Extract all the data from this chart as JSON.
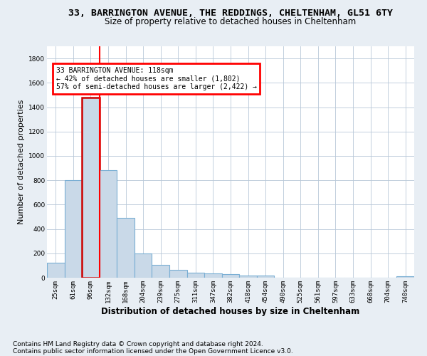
{
  "title_line1": "33, BARRINGTON AVENUE, THE REDDINGS, CHELTENHAM, GL51 6TY",
  "title_line2": "Size of property relative to detached houses in Cheltenham",
  "xlabel": "Distribution of detached houses by size in Cheltenham",
  "ylabel": "Number of detached properties",
  "footer_line1": "Contains HM Land Registry data © Crown copyright and database right 2024.",
  "footer_line2": "Contains public sector information licensed under the Open Government Licence v3.0.",
  "annotation_line1": "33 BARRINGTON AVENUE: 118sqm",
  "annotation_line2": "← 42% of detached houses are smaller (1,802)",
  "annotation_line3": "57% of semi-detached houses are larger (2,422) →",
  "bar_color": "#c9d9e8",
  "bar_edge_color": "#7aafd4",
  "highlight_bar_edge_color": "#cc0000",
  "categories": [
    "25sqm",
    "61sqm",
    "96sqm",
    "132sqm",
    "168sqm",
    "204sqm",
    "239sqm",
    "275sqm",
    "311sqm",
    "347sqm",
    "382sqm",
    "418sqm",
    "454sqm",
    "490sqm",
    "525sqm",
    "561sqm",
    "597sqm",
    "633sqm",
    "668sqm",
    "704sqm",
    "740sqm"
  ],
  "values": [
    120,
    800,
    1480,
    880,
    490,
    200,
    105,
    65,
    40,
    35,
    27,
    20,
    15,
    0,
    0,
    0,
    0,
    0,
    0,
    0,
    10
  ],
  "highlight_index": 2,
  "ylim": [
    0,
    1900
  ],
  "yticks": [
    0,
    200,
    400,
    600,
    800,
    1000,
    1200,
    1400,
    1600,
    1800
  ],
  "bg_color": "#e8eef4",
  "plot_bg_color": "#ffffff",
  "grid_color": "#b8c8d8",
  "title_fontsize": 9.5,
  "subtitle_fontsize": 8.5,
  "ylabel_fontsize": 8,
  "xlabel_fontsize": 8.5,
  "tick_fontsize": 6.5,
  "annotation_fontsize": 7,
  "footer_fontsize": 6.5
}
